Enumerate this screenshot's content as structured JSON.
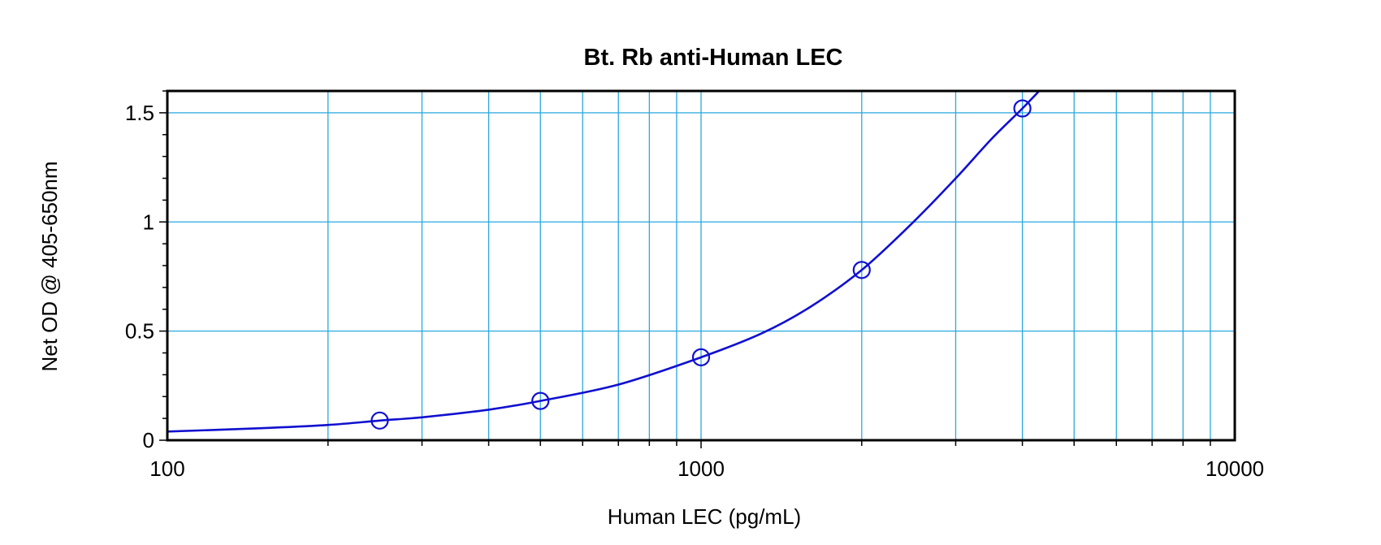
{
  "chart_data": {
    "type": "scatter",
    "title": "Bt. Rb anti-Human LEC",
    "xlabel": "Human LEC (pg/mL)",
    "ylabel": "Net OD @ 405-650nm",
    "x_scale": "log",
    "xlim": [
      100,
      10000
    ],
    "ylim": [
      0,
      1.6
    ],
    "x_ticks": [
      100,
      1000,
      10000
    ],
    "x_tick_labels": [
      "100",
      "1000",
      "10000"
    ],
    "y_ticks": [
      0,
      0.5,
      1,
      1.5
    ],
    "y_tick_labels": [
      "0",
      "0.5",
      "1",
      "1.5"
    ],
    "grid": true,
    "series": [
      {
        "points": {
          "x": [
            250,
            500,
            1000,
            2000,
            4000
          ],
          "y": [
            0.09,
            0.18,
            0.38,
            0.78,
            1.52
          ]
        },
        "fit_curve": {
          "x": [
            100,
            150,
            200,
            250,
            300,
            400,
            500,
            700,
            1000,
            1300,
            1600,
            2000,
            2500,
            3000,
            3500,
            4000,
            4300
          ],
          "y": [
            0.04,
            0.055,
            0.07,
            0.09,
            0.105,
            0.14,
            0.18,
            0.255,
            0.38,
            0.49,
            0.61,
            0.78,
            1.0,
            1.2,
            1.38,
            1.52,
            1.6
          ]
        }
      }
    ],
    "colors": {
      "grid": "#29a8e0",
      "curve": "#1010d0",
      "axes": "#000000"
    }
  }
}
